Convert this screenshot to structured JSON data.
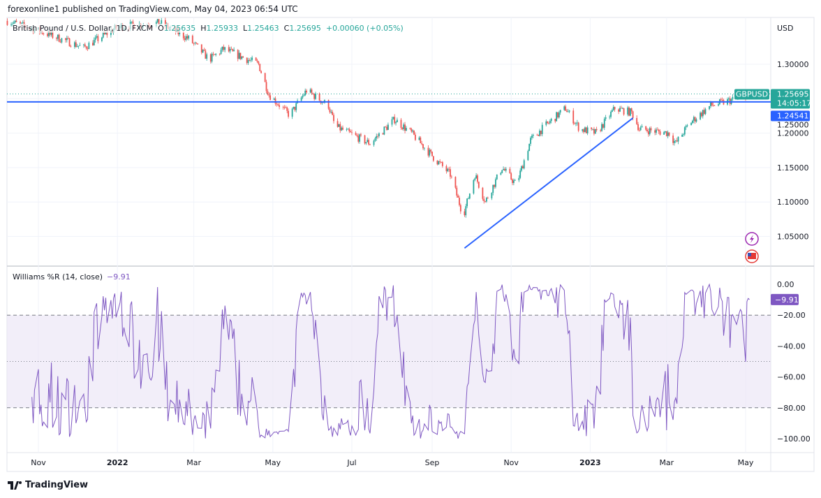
{
  "publisher_line": "forexonline1 published on TradingView.com, May 04, 2023 06:54 UTC",
  "legend": {
    "title": "British Pound / U.S. Dollar, 1D, FXCM",
    "open_label": "O",
    "open": "1.25635",
    "high_label": "H",
    "high": "1.25933",
    "low_label": "L",
    "low": "1.25463",
    "close_label": "C",
    "close": "1.25695",
    "change": "+0.00060 (+0.05%)"
  },
  "indicator_legend": {
    "title": "Williams %R (14, close)",
    "value": "−9.91"
  },
  "footer": {
    "brand": "TradingView"
  },
  "colors": {
    "up": "#26a69a",
    "down": "#ef5350",
    "line": "#2962ff",
    "wr": "#7e57c2",
    "wr_band": "#ede7f6",
    "symbol_tag": "#26a69a",
    "level_tag": "#2962ff"
  },
  "icons": [
    "lightning-icon",
    "us-flag-icon",
    "tradingview-logo-icon"
  ],
  "chart_data": [
    {
      "type": "candlestick",
      "symbol": "GBPUSD",
      "currency": "USD",
      "interval": "1D",
      "y_ticks": [
        "1.30000",
        "1.25000",
        "1.20000",
        "1.15000",
        "1.10000",
        "1.05000"
      ],
      "ylim": [
        1.015,
        1.375
      ],
      "x_ticks": [
        "Nov",
        "2022",
        "Mar",
        "May",
        "Jul",
        "Sep",
        "Nov",
        "2023",
        "Mar",
        "May"
      ],
      "x_tick_dates": [
        "2021-11-01",
        "2022-01-01",
        "2022-03-01",
        "2022-05-01",
        "2022-07-01",
        "2022-09-01",
        "2022-11-01",
        "2023-01-01",
        "2023-03-01",
        "2023-05-01"
      ],
      "xlim": [
        "2021-10-08",
        "2023-05-20"
      ],
      "approx_closes": [
        [
          "2021-10-08",
          1.363
        ],
        [
          "2021-11-04",
          1.347
        ],
        [
          "2021-12-06",
          1.324
        ],
        [
          "2022-01-02",
          1.355
        ],
        [
          "2022-02-03",
          1.36
        ],
        [
          "2022-02-25",
          1.337
        ],
        [
          "2022-03-13",
          1.307
        ],
        [
          "2022-03-24",
          1.322
        ],
        [
          "2022-04-20",
          1.3
        ],
        [
          "2022-04-28",
          1.256
        ],
        [
          "2022-05-14",
          1.226
        ],
        [
          "2022-05-27",
          1.262
        ],
        [
          "2022-06-13",
          1.24
        ],
        [
          "2022-06-18",
          1.21
        ],
        [
          "2022-07-15",
          1.185
        ],
        [
          "2022-08-03",
          1.22
        ],
        [
          "2022-08-16",
          1.2
        ],
        [
          "2022-09-02",
          1.165
        ],
        [
          "2022-09-15",
          1.14
        ],
        [
          "2022-09-25",
          1.08
        ],
        [
          "2022-10-04",
          1.14
        ],
        [
          "2022-10-12",
          1.1
        ],
        [
          "2022-10-25",
          1.15
        ],
        [
          "2022-11-05",
          1.125
        ],
        [
          "2022-11-16",
          1.19
        ],
        [
          "2022-11-27",
          1.21
        ],
        [
          "2022-12-13",
          1.236
        ],
        [
          "2022-12-24",
          1.206
        ],
        [
          "2023-01-06",
          1.2
        ],
        [
          "2023-01-20",
          1.236
        ],
        [
          "2023-02-02",
          1.23
        ],
        [
          "2023-02-08",
          1.206
        ],
        [
          "2023-03-03",
          1.2
        ],
        [
          "2023-03-08",
          1.185
        ],
        [
          "2023-03-19",
          1.215
        ],
        [
          "2023-04-04",
          1.24
        ],
        [
          "2023-04-15",
          1.245
        ],
        [
          "2023-05-04",
          1.25695
        ]
      ],
      "last_price": "1.25695",
      "countdown": "14:05:17",
      "horizontal_line": {
        "value": 1.24541,
        "label": "1.24541"
      },
      "trend_line": {
        "from": [
          "2022-09-26",
          1.033
        ],
        "to": [
          "2023-02-03",
          1.222
        ]
      }
    },
    {
      "type": "line",
      "name": "Williams %R (14, close)",
      "y_ticks": [
        "0.00",
        "−20.00",
        "−40.00",
        "−60.00",
        "−80.00",
        "−100.00"
      ],
      "ylim": [
        -100,
        0
      ],
      "bands": [
        -20,
        -50,
        -80
      ],
      "last_value": "−9.91"
    }
  ]
}
